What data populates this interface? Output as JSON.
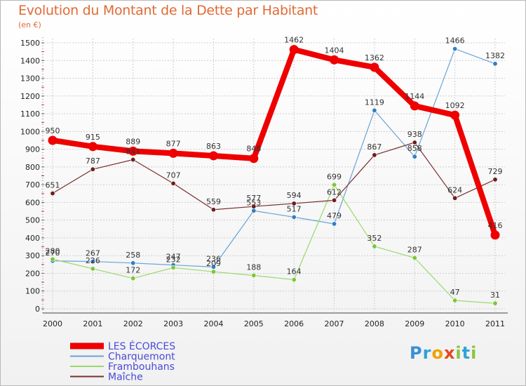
{
  "title": "Evolution du Montant de la Dette par Habitant",
  "unit_label": "(en €)",
  "logo_text": "Proxiti",
  "chart_data": {
    "type": "line",
    "x": [
      "2000",
      "2001",
      "2002",
      "2003",
      "2004",
      "2005",
      "2006",
      "2007",
      "2008",
      "2009",
      "2010",
      "2011"
    ],
    "ylim": [
      0,
      1500
    ],
    "yticks": [
      0,
      100,
      200,
      300,
      400,
      500,
      600,
      700,
      800,
      900,
      1000,
      1100,
      1200,
      1300,
      1400,
      1500
    ],
    "grid": true,
    "legend_position": "bottom-left",
    "series": [
      {
        "name": "LES ÉCORCES",
        "color": "#ee0000",
        "width": 8,
        "values": [
          950,
          915,
          889,
          877,
          863,
          848,
          1462,
          1404,
          1362,
          1144,
          1092,
          416
        ]
      },
      {
        "name": "Charquemont",
        "color": "#6aa3d6",
        "width": 1.2,
        "point_color": "#2f7fc4",
        "values": [
          270,
          267,
          258,
          247,
          236,
          553,
          517,
          479,
          1119,
          858,
          1466,
          1382
        ]
      },
      {
        "name": "Frambouhans",
        "color": "#9ad96a",
        "width": 1.2,
        "point_color": "#7cc63a",
        "values": [
          280,
          226,
          172,
          232,
          209,
          188,
          164,
          699,
          352,
          287,
          47,
          31
        ]
      },
      {
        "name": "Maîche",
        "color": "#7a3030",
        "width": 1.2,
        "point_color": "#6b1e1e",
        "values": [
          651,
          787,
          841,
          707,
          559,
          577,
          594,
          612,
          867,
          938,
          624,
          729
        ]
      }
    ]
  }
}
